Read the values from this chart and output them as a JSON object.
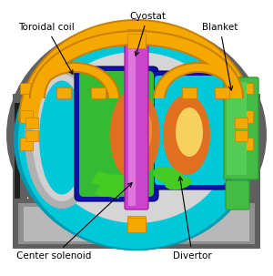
{
  "labels": {
    "cryostat": "Cyostat",
    "toroidal_coil": "Toroidal coil",
    "blanket": "Blanket",
    "center_solenoid": "Center solenoid",
    "divertor": "Divertor"
  },
  "colors": {
    "bg": "#ffffff",
    "cryostat_dark": "#606060",
    "cryostat_mid": "#909090",
    "cryostat_light": "#b8b8b8",
    "cryostat_white": "#d8d8d8",
    "toroidal_coil": "#F5A800",
    "toroidal_coil_dark": "#C88000",
    "cyan_torus": "#00C8D8",
    "cyan_dark": "#009BB0",
    "silver_coil": "#C0C0C0",
    "silver_light": "#E0E0E0",
    "dark_blue": "#1010AA",
    "dark_blue2": "#2020CC",
    "green_blanket": "#33BB33",
    "green_dark": "#229922",
    "orange_plasma": "#E07020",
    "orange_bright": "#F09030",
    "yellow_plasma": "#F8D060",
    "green_divertor": "#44CC22",
    "purple_solenoid": "#CC44CC",
    "purple_dark": "#991199",
    "right_blanket": "#44BB44",
    "right_blanket_dark": "#339933",
    "gray_inner": "#C8C8C8",
    "black_stripe": "#202020",
    "yellow_connector": "#F5A800"
  },
  "figsize": [
    3.0,
    3.03
  ],
  "dpi": 100
}
